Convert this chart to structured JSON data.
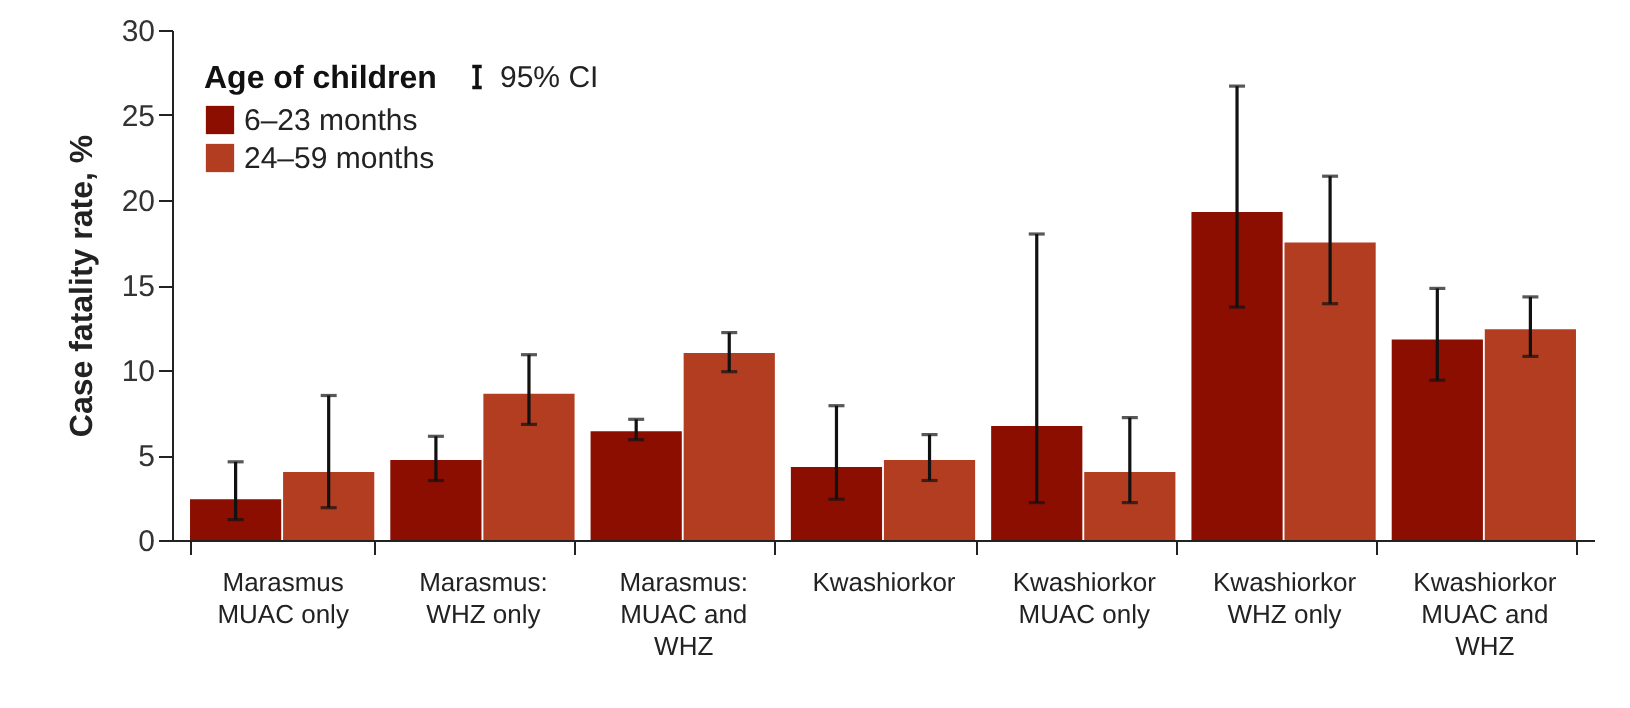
{
  "chart_data": {
    "type": "bar",
    "ylabel": "Case fatality rate, %",
    "legend_title": "Age of children",
    "legend": "top left",
    "categories": [
      "Marasmus MUAC only",
      "Marasmus: WHZ only",
      "Marasmus: MUAC and WHZ",
      "Kwashiorkor",
      "Kwashiorkor MUAC only",
      "Kwashiorkor WHZ only",
      "Kwashiorkor MUAC and WHZ"
    ],
    "series": [
      {
        "name": "6–23 months",
        "color": "#8b0e00",
        "values": [
          2.4,
          4.7,
          6.4,
          4.3,
          6.7,
          19.3,
          11.8
        ],
        "errors": [
          [
            1.2,
            4.6
          ],
          [
            3.5,
            6.1
          ],
          [
            5.9,
            7.1
          ],
          [
            2.4,
            7.9
          ],
          [
            2.2,
            18.0
          ],
          [
            13.7,
            26.7
          ],
          [
            9.4,
            14.8
          ]
        ]
      },
      {
        "name": "24–59 months",
        "color": "#b33d20",
        "values": [
          4.0,
          8.6,
          11.0,
          4.7,
          4.0,
          17.5,
          12.4
        ],
        "errors": [
          [
            1.9,
            8.5
          ],
          [
            6.8,
            10.9
          ],
          [
            9.9,
            12.2
          ],
          [
            3.5,
            6.2
          ],
          [
            2.2,
            7.2
          ],
          [
            13.9,
            21.4
          ],
          [
            10.8,
            14.3
          ]
        ]
      }
    ],
    "annotations": [
      "95% CI"
    ],
    "ylim": [
      0,
      30
    ],
    "yticks": [
      0,
      5,
      10,
      15,
      20,
      25,
      30
    ],
    "grid": false
  }
}
